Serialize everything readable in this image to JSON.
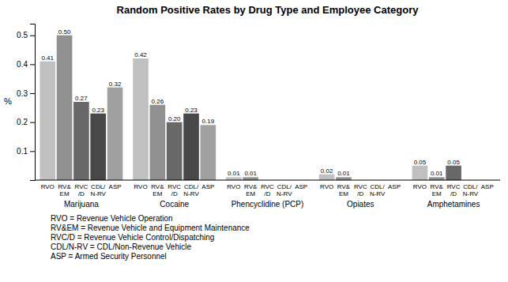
{
  "chart_data": {
    "type": "bar",
    "title": "Random Positive Rates by Drug Type and Employee Category",
    "ylabel": "%",
    "categories": [
      "Marijuana",
      "Cocaine",
      "Phencyclidine (PCP)",
      "Opiates",
      "Amphetamines"
    ],
    "series": [
      {
        "name": "RVO",
        "color": "#c0c0c0",
        "values": [
          0.41,
          0.42,
          0.01,
          0.02,
          0.05
        ],
        "value_labels": [
          "0.41",
          "0.42",
          "0.01",
          "0.02",
          "0.05"
        ]
      },
      {
        "name": "RV&\nEM",
        "color": "#909090",
        "values": [
          0.5,
          0.26,
          0.01,
          0.01,
          0.01
        ],
        "value_labels": [
          "0.50",
          "0.26",
          "0.01",
          "0.01",
          "0.01"
        ]
      },
      {
        "name": "RVC\n/D",
        "color": "#686868",
        "values": [
          0.27,
          0.2,
          0,
          0,
          0.05
        ],
        "value_labels": [
          "0.27",
          "0.20",
          null,
          null,
          "0.05"
        ]
      },
      {
        "name": "CDL/\nN-RV",
        "color": "#484848",
        "values": [
          0.23,
          0.23,
          0,
          0,
          0
        ],
        "value_labels": [
          "0.23",
          "0.23",
          null,
          null,
          null
        ]
      },
      {
        "name": "ASP",
        "color": "#a0a0a0",
        "values": [
          0.32,
          0.19,
          0,
          0,
          0
        ],
        "value_labels": [
          "0.32",
          "0.19",
          null,
          null,
          null
        ]
      }
    ],
    "ylim": [
      0,
      0.54
    ],
    "yticks": [
      0.1,
      0.2,
      0.3,
      0.4,
      0.5
    ],
    "grid": false,
    "data_labels": true,
    "annotations": [
      "RVO = Revenue Vehicle Operation",
      "RV&EM = Revenue Vehicle and Equipment Maintenance",
      "RVC/D = Revenue Vehicle Control/Dispatching",
      "CDL/N-RV = CDL/Non-Revenue Vehicle",
      "ASP = Armed Security Personnel"
    ]
  }
}
